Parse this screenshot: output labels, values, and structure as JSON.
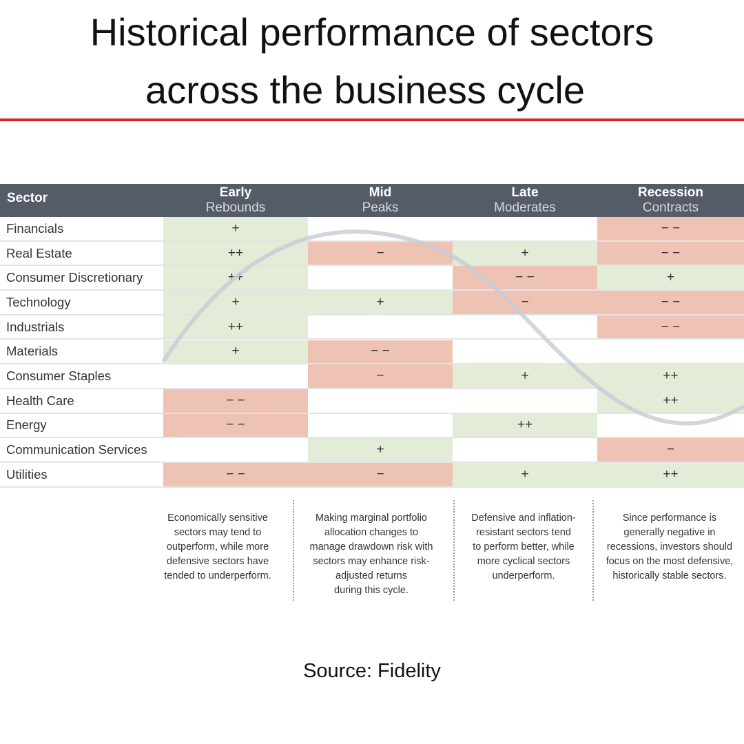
{
  "header": {
    "title": [
      "Historical performance of sectors",
      "across the business cycle"
    ]
  },
  "table": {
    "sector_label": "Sector",
    "columns": [
      {
        "name": "Early",
        "phase": "Rebounds"
      },
      {
        "name": "Mid",
        "phase": "Peaks"
      },
      {
        "name": "Late",
        "phase": "Moderates"
      },
      {
        "name": "Recession",
        "phase": "Contracts"
      }
    ],
    "rows": [
      [
        "Financials",
        "+",
        "",
        "",
        "− −"
      ],
      [
        "Real Estate",
        "++",
        "−",
        "+",
        "− −"
      ],
      [
        "Consumer Discretionary",
        "++",
        "",
        "− −",
        "+"
      ],
      [
        "Technology",
        "+",
        "+",
        "−",
        "− −"
      ],
      [
        "Industrials",
        "++",
        "",
        "",
        "− −"
      ],
      [
        "Materials",
        "+",
        "− −",
        "",
        ""
      ],
      [
        "Consumer Staples",
        "",
        "−",
        "+",
        "++"
      ],
      [
        "Health Care",
        "− −",
        "",
        "",
        "++"
      ],
      [
        "Energy",
        "− −",
        "",
        "++",
        ""
      ],
      [
        "Communication Services",
        "",
        "+",
        "",
        "−"
      ],
      [
        "Utilities",
        "− −",
        "−",
        "+",
        "++"
      ]
    ]
  },
  "notes": [
    [
      "Economically sensitive",
      "sectors may tend to",
      "outperform, while more",
      "defensive sectors have",
      "tended to underperform."
    ],
    [
      "Making marginal portfolio",
      "allocation changes to",
      "manage drawdown risk with",
      "sectors may enhance risk-",
      "adjusted returns",
      "during this cycle."
    ],
    [
      "Defensive and inflation-",
      "resistant sectors tend",
      "to perform better, while",
      "more cyclical sectors",
      "underperform."
    ],
    [
      "Since performance is",
      "generally negative in",
      "recessions, investors should",
      "focus on the most defensive,",
      "historically stable sectors."
    ]
  ],
  "footer": {
    "source": "Source: Fidelity"
  }
}
